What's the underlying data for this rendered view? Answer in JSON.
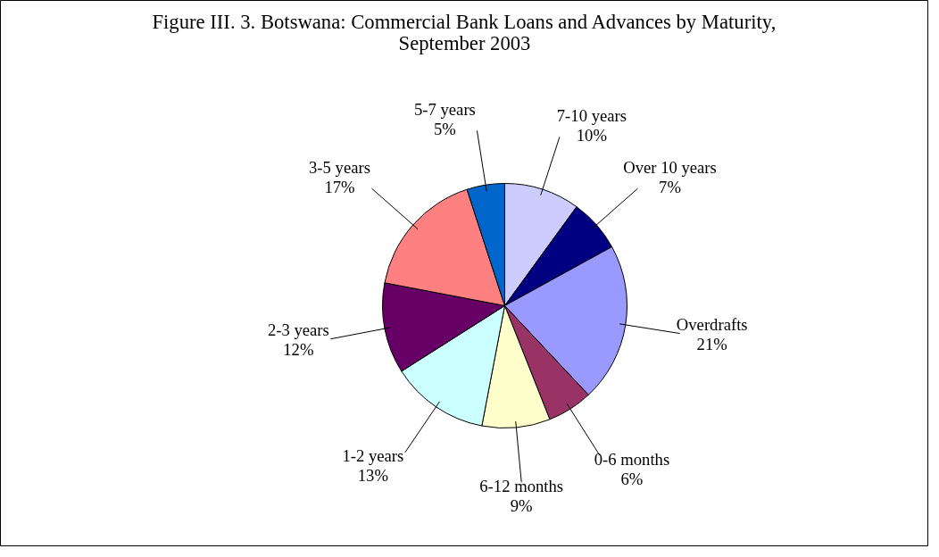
{
  "chart_data": {
    "type": "pie",
    "title": "Figure III. 3. Botswana: Commercial Bank Loans and Advances by Maturity, September 2003",
    "categories": [
      "7-10 years",
      "Over 10 years",
      "Overdrafts",
      "0-6 months",
      "6-12 months",
      "1-2 years",
      "2-3 years",
      "3-5 years",
      "5-7 years"
    ],
    "values": [
      10,
      7,
      21,
      6,
      9,
      13,
      12,
      17,
      5
    ],
    "value_labels": [
      "10%",
      "7%",
      "21%",
      "6%",
      "9%",
      "13%",
      "12%",
      "17%",
      "5%"
    ],
    "colors": [
      "#ccccff",
      "#000080",
      "#9999ff",
      "#993366",
      "#ffffcc",
      "#ccffff",
      "#660066",
      "#ff8080",
      "#0066cc"
    ],
    "legend": false
  }
}
